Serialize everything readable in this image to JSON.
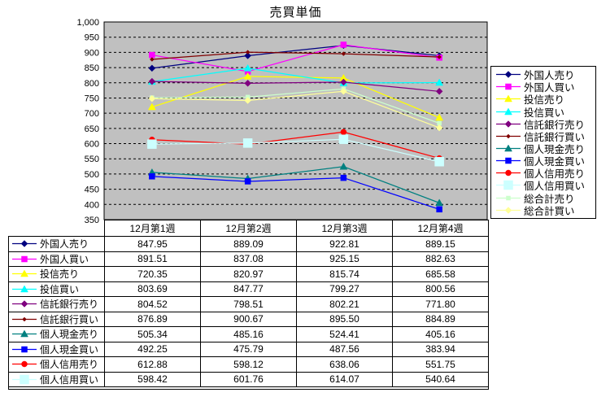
{
  "chart_data": {
    "type": "line",
    "title": "売買単価",
    "categories": [
      "12月第1週",
      "12月第2週",
      "12月第3週",
      "12月第4週"
    ],
    "series": [
      {
        "name": "外国人売り",
        "values": [
          847.95,
          889.09,
          922.81,
          889.15
        ],
        "color": "#000080",
        "marker": "diamond",
        "in_table": true
      },
      {
        "name": "外国人買い",
        "values": [
          891.51,
          837.08,
          925.15,
          882.63
        ],
        "color": "#FF00FF",
        "marker": "square",
        "in_table": true
      },
      {
        "name": "投信売り",
        "values": [
          720.35,
          820.97,
          815.74,
          685.58
        ],
        "color": "#FFFF00",
        "marker": "triangle",
        "in_table": true
      },
      {
        "name": "投信買い",
        "values": [
          803.69,
          847.77,
          799.27,
          800.56
        ],
        "color": "#00FFFF",
        "marker": "triangle",
        "in_table": true
      },
      {
        "name": "信託銀行売り",
        "values": [
          804.52,
          798.51,
          802.21,
          771.8
        ],
        "color": "#800080",
        "marker": "diamond",
        "in_table": true
      },
      {
        "name": "信託銀行買い",
        "values": [
          876.89,
          900.67,
          895.5,
          884.89
        ],
        "color": "#800000",
        "marker": "diamond-small",
        "in_table": true
      },
      {
        "name": "個人現金売り",
        "values": [
          505.34,
          485.16,
          524.41,
          405.16
        ],
        "color": "#008080",
        "marker": "triangle",
        "in_table": true
      },
      {
        "name": "個人現金買い",
        "values": [
          492.25,
          475.79,
          487.56,
          383.94
        ],
        "color": "#0000FF",
        "marker": "square",
        "in_table": true
      },
      {
        "name": "個人信用売り",
        "values": [
          612.88,
          598.12,
          638.06,
          551.75
        ],
        "color": "#FF0000",
        "marker": "circle",
        "in_table": true
      },
      {
        "name": "個人信用買い",
        "values": [
          598.42,
          601.76,
          614.07,
          540.64
        ],
        "color": "#CCFFFF",
        "marker": "square-large",
        "in_table": true
      },
      {
        "name": "総合計売り",
        "values": [
          751,
          753,
          780,
          667
        ],
        "color": "#CCFFCC",
        "marker": "square-small",
        "in_table": false
      },
      {
        "name": "総合計買い",
        "values": [
          748,
          742,
          772,
          652
        ],
        "color": "#FFFF99",
        "marker": "diamond",
        "in_table": false
      }
    ],
    "ylim": [
      350,
      1000
    ],
    "ytick_step": 50,
    "ytick_labels": [
      "1,000",
      "950",
      "900",
      "850",
      "800",
      "750",
      "700",
      "650",
      "600",
      "550",
      "500",
      "450",
      "400",
      "350"
    ],
    "grid": true,
    "gridline_style": "dashed",
    "legend_position": "right",
    "plot_bg": "#C0C0C0",
    "axis_color": "#000000"
  }
}
